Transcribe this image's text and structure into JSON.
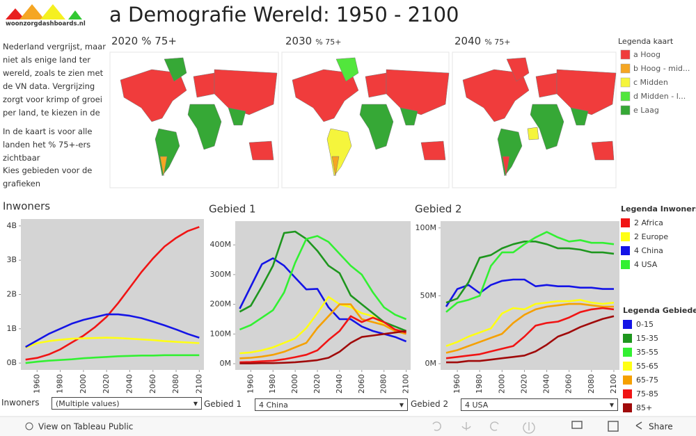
{
  "header": {
    "logo": "woonzorgdashboards.nl",
    "title": "a Demografie Wereld: 1950 - 2100"
  },
  "intro": [
    "Nederland vergrijst, maar niet als enige land ter wereld, zoals te zien met de VN data. Vergrijzing zorgt voor krimp of groei per land, te kiezen in de grafiek inwoners.",
    "In de kaart is voor alle landen het % 75+-ers zichtbaar",
    "Kies gebieden voor de grafieken"
  ],
  "maps": {
    "titles": [
      {
        "year": "2020",
        "label": "% 75+"
      },
      {
        "year": "2030",
        "label": "% 75+"
      },
      {
        "year": "2040",
        "label": "% 75+"
      }
    ],
    "legend": {
      "title": "Legenda kaart",
      "items": [
        {
          "label": "a Hoog",
          "color": "#f03c3c"
        },
        {
          "label": "b Hoog - mid...",
          "color": "#f5a623"
        },
        {
          "label": "c Midden",
          "color": "#f5f53c"
        },
        {
          "label": "d Midden - l...",
          "color": "#52e63c"
        },
        {
          "label": "e Laag",
          "color": "#36a836"
        }
      ]
    }
  },
  "chart_data": [
    {
      "type": "line",
      "title": "Inwoners",
      "legend_title": "Legenda Inwoners",
      "x": [
        1950,
        1960,
        1970,
        1980,
        1990,
        2000,
        2010,
        2020,
        2030,
        2040,
        2050,
        2060,
        2070,
        2080,
        2090,
        2100
      ],
      "xlim": [
        1946,
        2104
      ],
      "xticks": [
        1960,
        1980,
        2000,
        2020,
        2040,
        2060,
        2080,
        2100
      ],
      "ylim": [
        -0.2,
        4.2
      ],
      "yticks": [
        {
          "value": 0,
          "label": "0B"
        },
        {
          "value": 1,
          "label": "1B"
        },
        {
          "value": 2,
          "label": "2B"
        },
        {
          "value": 3,
          "label": "3B"
        },
        {
          "value": 4,
          "label": "4B"
        }
      ],
      "series": [
        {
          "name": "2 Africa",
          "color": "#f01414",
          "values": [
            0.1,
            0.15,
            0.25,
            0.4,
            0.6,
            0.8,
            1.05,
            1.35,
            1.75,
            2.2,
            2.65,
            3.05,
            3.4,
            3.65,
            3.85,
            3.97
          ]
        },
        {
          "name": "2 Europe",
          "color": "#ffff14",
          "values": [
            0.45,
            0.58,
            0.64,
            0.68,
            0.71,
            0.72,
            0.73,
            0.74,
            0.73,
            0.71,
            0.69,
            0.67,
            0.64,
            0.62,
            0.6,
            0.58
          ]
        },
        {
          "name": "4 China",
          "color": "#1414e6",
          "values": [
            0.47,
            0.66,
            0.85,
            1.0,
            1.15,
            1.26,
            1.34,
            1.42,
            1.42,
            1.38,
            1.31,
            1.21,
            1.1,
            0.98,
            0.85,
            0.74
          ]
        },
        {
          "name": "4 USA",
          "color": "#32f032",
          "values": [
            0.0,
            0.04,
            0.07,
            0.09,
            0.11,
            0.14,
            0.16,
            0.18,
            0.2,
            0.21,
            0.22,
            0.22,
            0.23,
            0.23,
            0.23,
            0.23
          ]
        }
      ]
    },
    {
      "type": "line",
      "title": "Gebied 1",
      "legend_title": "Legenda Gebieden",
      "x": [
        1950,
        1960,
        1970,
        1980,
        1990,
        2000,
        2010,
        2020,
        2030,
        2040,
        2050,
        2060,
        2070,
        2080,
        2090,
        2100
      ],
      "xlim": [
        1946,
        2104
      ],
      "xticks": [
        1960,
        1980,
        2000,
        2020,
        2040,
        2060,
        2080,
        2100
      ],
      "ylim": [
        -21,
        480
      ],
      "yticks": [
        {
          "value": 0,
          "label": "0M"
        },
        {
          "value": 100,
          "label": "100M"
        },
        {
          "value": 200,
          "label": "200M"
        },
        {
          "value": 300,
          "label": "300M"
        },
        {
          "value": 400,
          "label": "400M"
        }
      ],
      "series": [
        {
          "name": "0-15",
          "color": "#1414e6",
          "values": [
            185,
            260,
            335,
            355,
            330,
            290,
            250,
            252,
            190,
            150,
            150,
            125,
            110,
            100,
            90,
            75
          ]
        },
        {
          "name": "15-35",
          "color": "#1e961e",
          "values": [
            175,
            195,
            260,
            330,
            440,
            445,
            420,
            380,
            330,
            305,
            230,
            200,
            170,
            140,
            125,
            110
          ]
        },
        {
          "name": "35-55",
          "color": "#32f032",
          "values": [
            115,
            130,
            155,
            180,
            240,
            340,
            420,
            430,
            410,
            370,
            330,
            300,
            240,
            190,
            165,
            150
          ]
        },
        {
          "name": "55-65",
          "color": "#ffff14",
          "values": [
            35,
            38,
            45,
            55,
            70,
            85,
            120,
            170,
            225,
            200,
            190,
            170,
            160,
            130,
            110,
            105
          ]
        },
        {
          "name": "65-75",
          "color": "#f5a000",
          "values": [
            18,
            20,
            24,
            30,
            40,
            55,
            70,
            120,
            160,
            200,
            200,
            150,
            140,
            130,
            110,
            100
          ]
        },
        {
          "name": "75-85",
          "color": "#f01414",
          "values": [
            5,
            6,
            8,
            10,
            15,
            22,
            30,
            45,
            80,
            110,
            160,
            140,
            155,
            140,
            115,
            105
          ]
        },
        {
          "name": "85+",
          "color": "#a00a0a",
          "values": [
            1,
            1,
            2,
            2,
            3,
            5,
            8,
            12,
            20,
            40,
            70,
            90,
            95,
            100,
            105,
            110
          ]
        }
      ]
    },
    {
      "type": "line",
      "title": "Gebied 2",
      "x": [
        1950,
        1960,
        1970,
        1980,
        1990,
        2000,
        2010,
        2020,
        2030,
        2040,
        2050,
        2060,
        2070,
        2080,
        2090,
        2100
      ],
      "xlim": [
        1945,
        2105
      ],
      "xticks": [
        1960,
        1980,
        2000,
        2020,
        2040,
        2060,
        2080,
        2100
      ],
      "ylim": [
        -4.6,
        105
      ],
      "yticks": [
        {
          "value": 0,
          "label": "0M"
        },
        {
          "value": 50,
          "label": "50M"
        },
        {
          "value": 100,
          "label": "100M"
        }
      ],
      "series": [
        {
          "color": "#1414e6",
          "values": [
            42,
            55,
            58,
            52,
            58,
            61,
            62,
            62,
            57,
            58,
            57,
            57,
            56,
            56,
            55,
            55
          ]
        },
        {
          "color": "#1e961e",
          "values": [
            45,
            48,
            60,
            78,
            80,
            85,
            88,
            90,
            90,
            88,
            85,
            85,
            84,
            82,
            82,
            81
          ]
        },
        {
          "color": "#32f032",
          "values": [
            38,
            45,
            47,
            50,
            72,
            82,
            82,
            88,
            93,
            97,
            93,
            90,
            91,
            89,
            89,
            88
          ]
        },
        {
          "color": "#ffff14",
          "values": [
            13,
            16,
            20,
            23,
            26,
            37,
            41,
            40,
            44,
            45,
            46,
            46,
            47,
            45,
            44,
            45
          ]
        },
        {
          "color": "#f5a000",
          "values": [
            8,
            10,
            13,
            16,
            19,
            22,
            30,
            36,
            40,
            42,
            43,
            44,
            44,
            43,
            42,
            42
          ]
        },
        {
          "color": "#f01414",
          "values": [
            4,
            5,
            6,
            7,
            9,
            11,
            13,
            20,
            28,
            30,
            31,
            34,
            38,
            40,
            41,
            40
          ]
        },
        {
          "color": "#a00a0a",
          "values": [
            1,
            1,
            2,
            2,
            3,
            4,
            5,
            6,
            9,
            14,
            20,
            23,
            27,
            30,
            33,
            35
          ]
        }
      ]
    }
  ],
  "filters": [
    {
      "label": "Inwoners",
      "value": "(Multiple values)"
    },
    {
      "label": "Gebied 1",
      "value": "4 China"
    },
    {
      "label": "Gebied 2",
      "value": "4 USA"
    }
  ],
  "toolbar": {
    "view": "View on Tableau Public",
    "share": "Share"
  }
}
